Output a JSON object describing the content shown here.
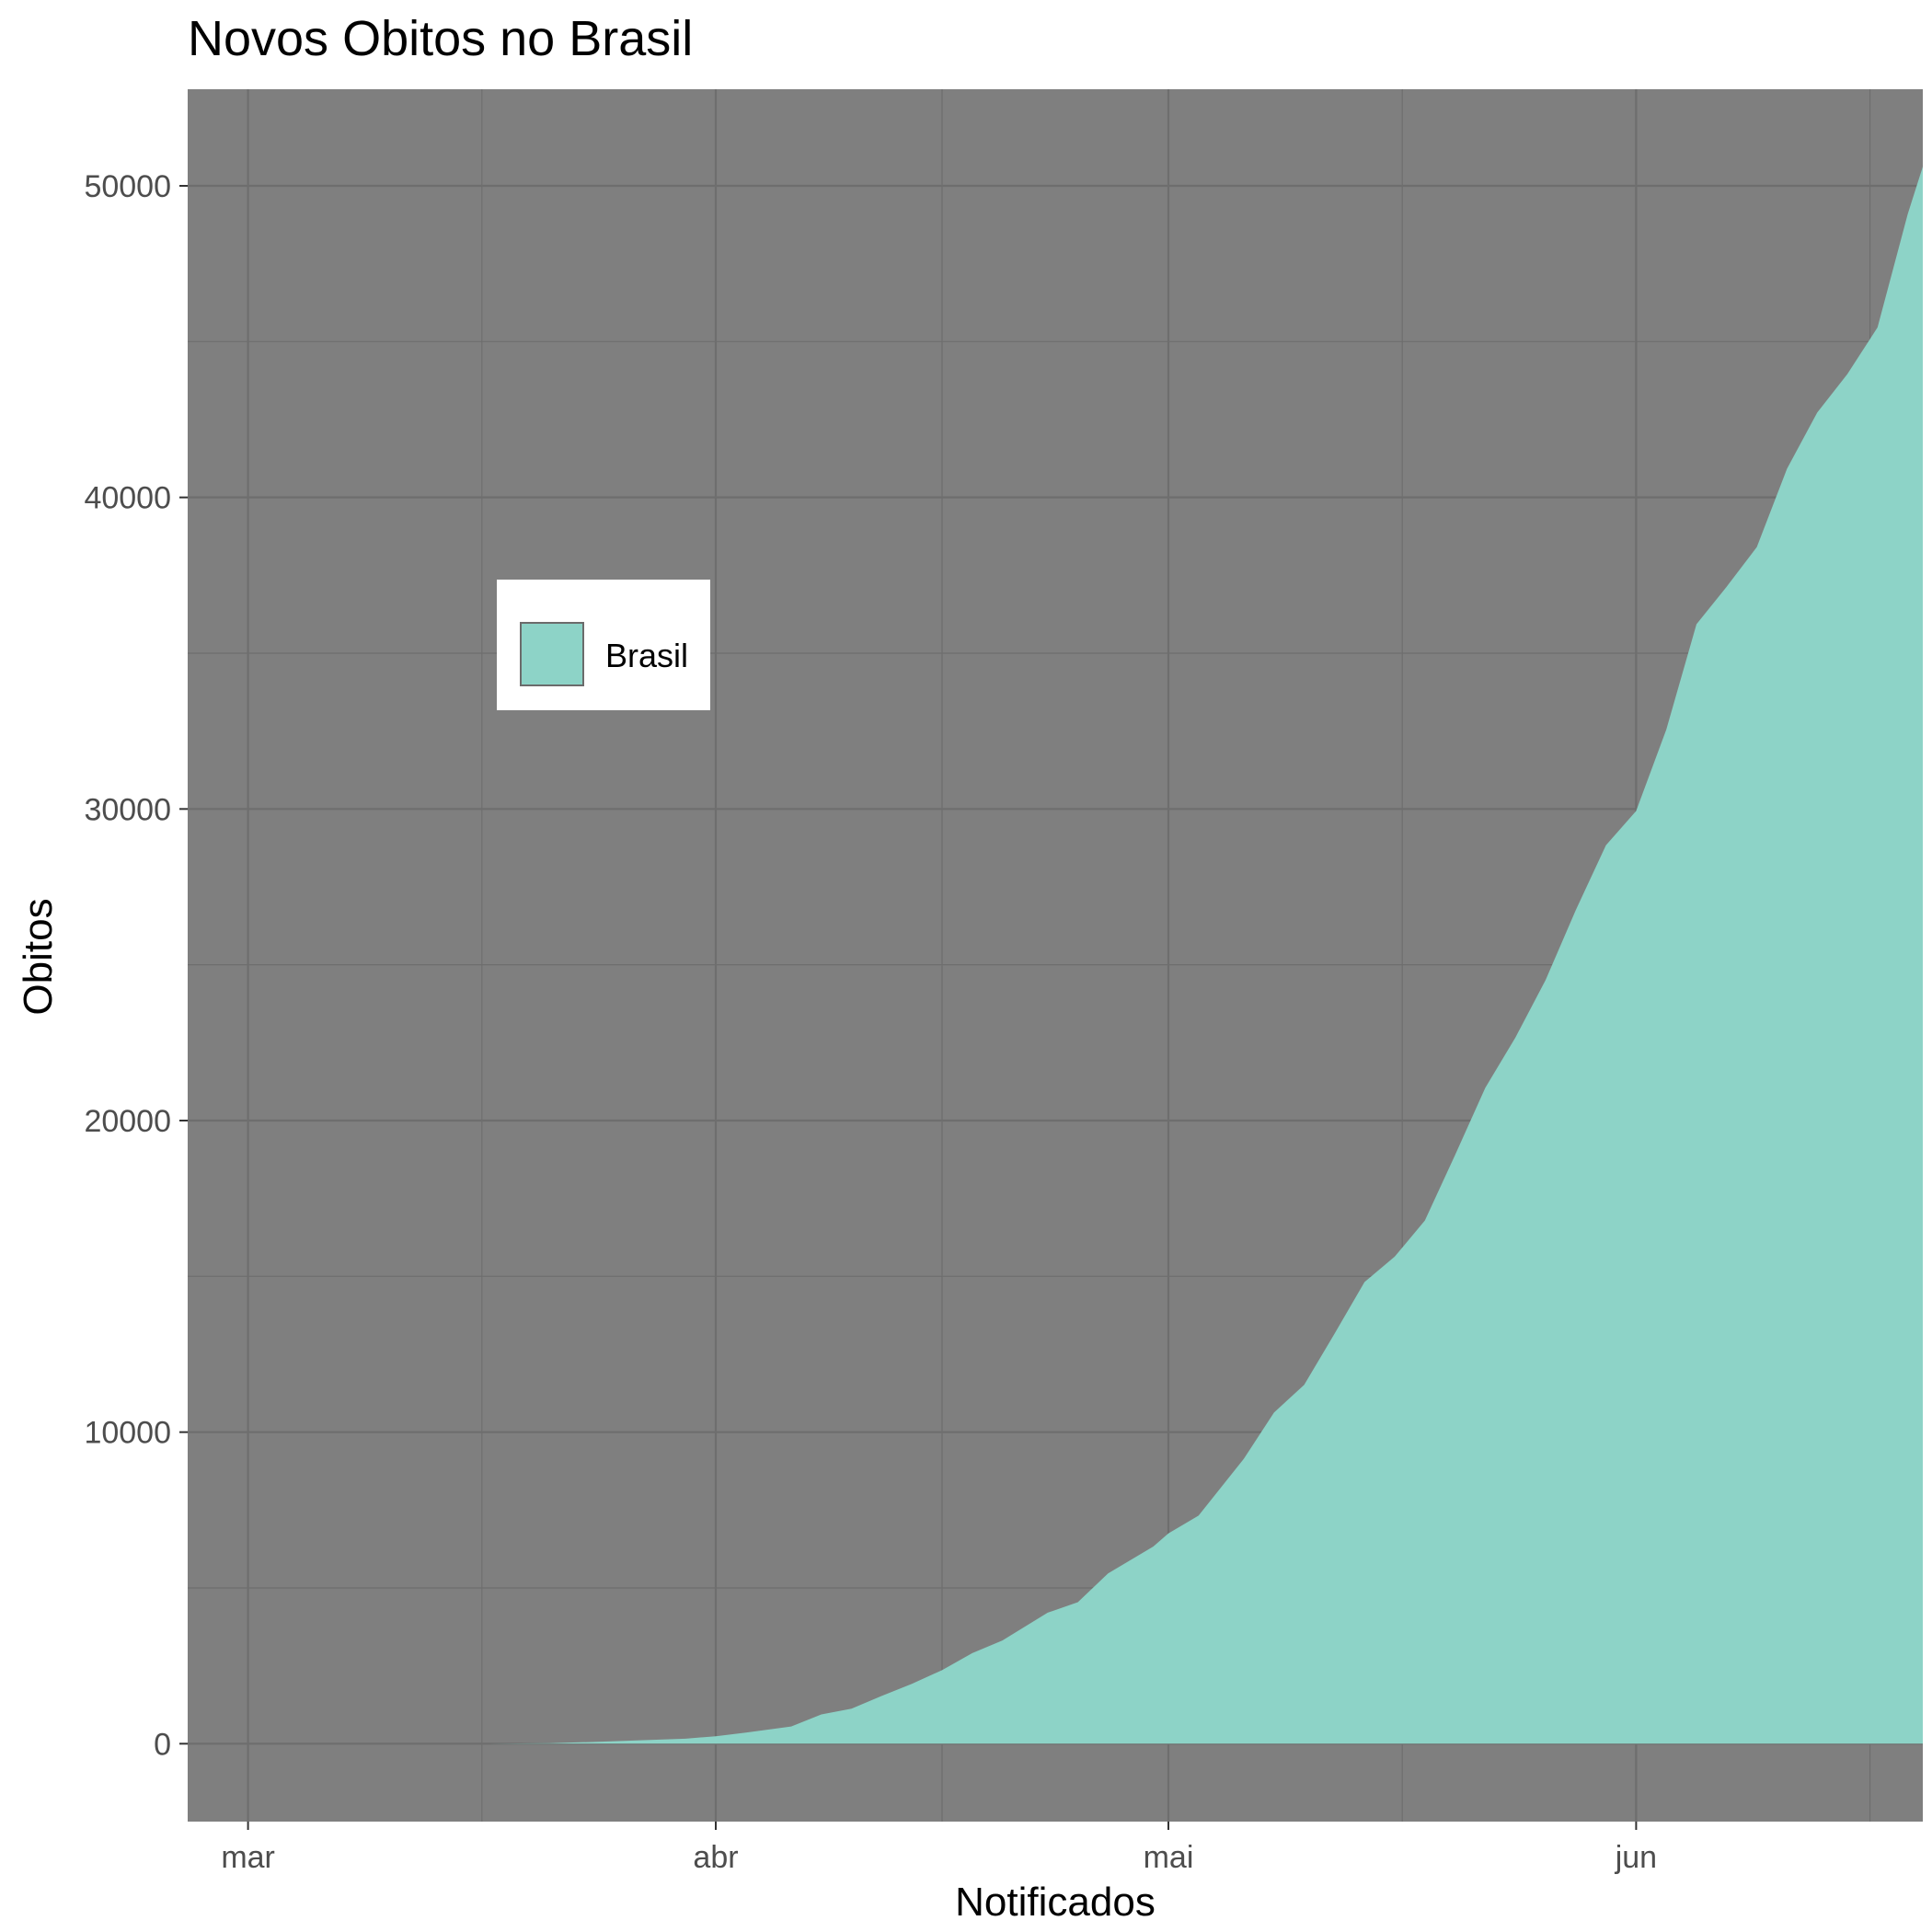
{
  "chart_data": {
    "type": "area",
    "title": "Novos Obitos no Brasil",
    "xlabel": "Notificados",
    "ylabel": "Obitos",
    "x_ticks": [
      {
        "date": "2020-03-01",
        "label": "mar"
      },
      {
        "date": "2020-04-01",
        "label": "abr"
      },
      {
        "date": "2020-05-01",
        "label": "mai"
      },
      {
        "date": "2020-06-01",
        "label": "jun"
      }
    ],
    "xlim": [
      "2020-02-26",
      "2020-06-20"
    ],
    "y_ticks": [
      0,
      10000,
      20000,
      30000,
      40000,
      50000
    ],
    "ylim": [
      -2500,
      53100
    ],
    "grid": true,
    "background": "#7f7f7f",
    "legend": {
      "position": "inside-left",
      "entries": [
        "Brasil"
      ]
    },
    "series": [
      {
        "name": "Brasil",
        "color": "#8dd3c7",
        "x": [
          "2020-03-17",
          "2020-03-21",
          "2020-03-24",
          "2020-03-27",
          "2020-03-30",
          "2020-04-01",
          "2020-04-03",
          "2020-04-06",
          "2020-04-08",
          "2020-04-10",
          "2020-04-12",
          "2020-04-14",
          "2020-04-16",
          "2020-04-18",
          "2020-04-20",
          "2020-04-23",
          "2020-04-25",
          "2020-04-27",
          "2020-04-30",
          "2020-05-01",
          "2020-05-03",
          "2020-05-06",
          "2020-05-08",
          "2020-05-10",
          "2020-05-12",
          "2020-05-14",
          "2020-05-16",
          "2020-05-18",
          "2020-05-20",
          "2020-05-22",
          "2020-05-24",
          "2020-05-26",
          "2020-05-28",
          "2020-05-30",
          "2020-06-01",
          "2020-06-03",
          "2020-06-05",
          "2020-06-07",
          "2020-06-09",
          "2020-06-11",
          "2020-06-13",
          "2020-06-15",
          "2020-06-17",
          "2020-06-19",
          "2020-06-20"
        ],
        "values": [
          1,
          18,
          57,
          111,
          159,
          240,
          359,
          553,
          941,
          1124,
          1532,
          1924,
          2361,
          2906,
          3313,
          4205,
          4543,
          5466,
          6329,
          6750,
          7321,
          9146,
          10627,
          11519,
          13149,
          14817,
          15633,
          16792,
          18894,
          21048,
          22666,
          24512,
          26754,
          28834,
          29937,
          32548,
          35930,
          37134,
          38406,
          40919,
          42720,
          43959,
          45456,
          49090,
          50617
        ]
      }
    ]
  }
}
